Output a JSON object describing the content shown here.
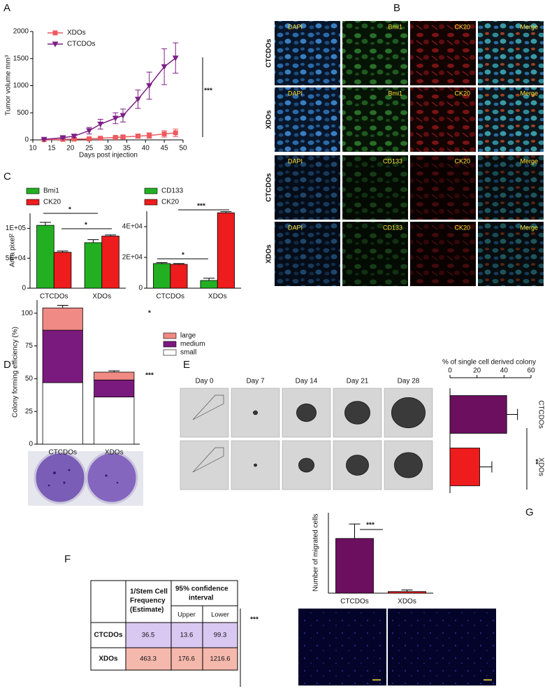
{
  "panels": [
    "A",
    "B",
    "C",
    "D",
    "E",
    "F",
    "G"
  ],
  "chart_data": [
    {
      "type": "line",
      "xlabel": "Days post injection",
      "ylabel": "Tumor volume mm³",
      "x": [
        13,
        18,
        21,
        25,
        28,
        32,
        34,
        38,
        41,
        45,
        48
      ],
      "xlim": [
        10,
        50
      ],
      "xticks": [
        10,
        15,
        20,
        25,
        30,
        35,
        40,
        45,
        50
      ],
      "ylim": [
        0,
        2000
      ],
      "yticks": [
        0,
        500,
        1000,
        1500,
        2000
      ],
      "series": [
        {
          "name": "XDOs",
          "color": "#ee5a5f",
          "marker": "square",
          "values": [
            5,
            10,
            15,
            20,
            30,
            45,
            55,
            70,
            80,
            110,
            130
          ],
          "errors": [
            5,
            5,
            8,
            10,
            15,
            20,
            25,
            40,
            50,
            60,
            70
          ]
        },
        {
          "name": "CTCDOs",
          "color": "#7d1f86",
          "marker": "triangle-down",
          "values": [
            10,
            40,
            70,
            170,
            290,
            400,
            450,
            750,
            1000,
            1350,
            1510
          ],
          "errors": [
            5,
            20,
            30,
            60,
            90,
            100,
            120,
            170,
            250,
            330,
            280
          ]
        }
      ],
      "annotations": [
        "***"
      ]
    },
    {
      "type": "bar",
      "ylabel": "Area pixel²",
      "categories": [
        "CTCDOs",
        "XDOs"
      ],
      "ylim": [
        0,
        125000
      ],
      "yticks": [
        0,
        {
          "value": 50000,
          "label": "5E+04"
        },
        {
          "value": 100000,
          "label": "1E+05"
        }
      ],
      "series": [
        {
          "name": "Bmi1",
          "color": "#22b022",
          "values": [
            105000,
            76000
          ],
          "errors": [
            5000,
            5000
          ]
        },
        {
          "name": "CK20",
          "color": "#ee1c1c",
          "values": [
            60000,
            87000
          ],
          "errors": [
            2000,
            2000
          ]
        }
      ],
      "annotations": [
        "*",
        "*"
      ]
    },
    {
      "type": "bar",
      "categories": [
        "CTCDOs",
        "XDOs"
      ],
      "ylim": [
        0,
        50000
      ],
      "yticks": [
        0,
        {
          "value": 20000,
          "label": "2E+04"
        },
        {
          "value": 40000,
          "label": "4E+04"
        }
      ],
      "series": [
        {
          "name": "CD133",
          "color": "#22b022",
          "values": [
            16000,
            5000
          ],
          "errors": [
            600,
            1500
          ]
        },
        {
          "name": "CK20",
          "color": "#ee1c1c",
          "values": [
            15500,
            49000
          ],
          "errors": [
            500,
            700
          ]
        }
      ],
      "annotations": [
        "*",
        "***"
      ]
    },
    {
      "type": "bar",
      "stacked": true,
      "ylabel": "Colony forming efficiency (%)",
      "categories": [
        "CTCDOs",
        "XDOs"
      ],
      "ylim": [
        0,
        110
      ],
      "yticks": [
        0,
        25,
        50,
        75,
        100
      ],
      "series": [
        {
          "name": "small",
          "color": "#ffffff",
          "values": [
            47,
            36
          ],
          "errors": [
            1,
            8
          ]
        },
        {
          "name": "medium",
          "color": "#7b1a7e",
          "values": [
            40,
            13
          ],
          "errors": [
            2,
            3
          ]
        },
        {
          "name": "large",
          "color": "#f08a84",
          "values": [
            17,
            6
          ],
          "errors": [
            2,
            1
          ]
        }
      ],
      "annotations": [
        "*",
        "***"
      ]
    },
    {
      "type": "bar",
      "orientation": "horizontal",
      "title": "% of single cell derived colony",
      "categories": [
        "CTCDOs",
        "XDOs"
      ],
      "values": [
        42,
        22
      ],
      "errors": [
        8,
        9
      ],
      "colors": [
        "#6b0f5e",
        "#ee1c1c"
      ],
      "xlim": [
        0,
        60
      ],
      "xticks": [
        0,
        20,
        40,
        60
      ],
      "annotations": [
        "**"
      ]
    },
    {
      "type": "bar",
      "ylabel": "Number of migrated cells",
      "categories": [
        "CTCDOs",
        "XDOs"
      ],
      "values": [
        170,
        5
      ],
      "errors": [
        45,
        5
      ],
      "colors": [
        "#6b0f5e",
        "#ee1c1c"
      ],
      "ylim": [
        0,
        250
      ],
      "annotations": [
        "***"
      ]
    }
  ],
  "microscopy": {
    "rows": [
      {
        "label": "CTCDOs",
        "channels": [
          "DAPI",
          "Bmi1",
          "CK20",
          "Merge"
        ]
      },
      {
        "label": "XDOs",
        "channels": [
          "DAPI",
          "Bmi1",
          "CK20",
          "Merge"
        ]
      },
      {
        "label": "CTCDOs",
        "channels": [
          "DAPI",
          "CD133",
          "CK20",
          "Merge"
        ]
      },
      {
        "label": "XDOs",
        "channels": [
          "DAPI",
          "CD133",
          "CK20",
          "Merge"
        ]
      }
    ]
  },
  "time_course": {
    "days": [
      "Day 0",
      "Day 7",
      "Day 14",
      "Day 21",
      "Day 28"
    ]
  },
  "table": {
    "header": {
      "estimate": [
        "1/Stem Cell",
        "Frequency",
        "(Estimate)"
      ],
      "ci": [
        "95% confidence",
        "interval"
      ],
      "upper": "Upper",
      "lower": "Lower"
    },
    "rows": [
      [
        "CTCDOs",
        36.5,
        13.6,
        99.3
      ],
      [
        "XDOs",
        463.3,
        176.6,
        1216.6
      ]
    ],
    "significance": "***"
  }
}
